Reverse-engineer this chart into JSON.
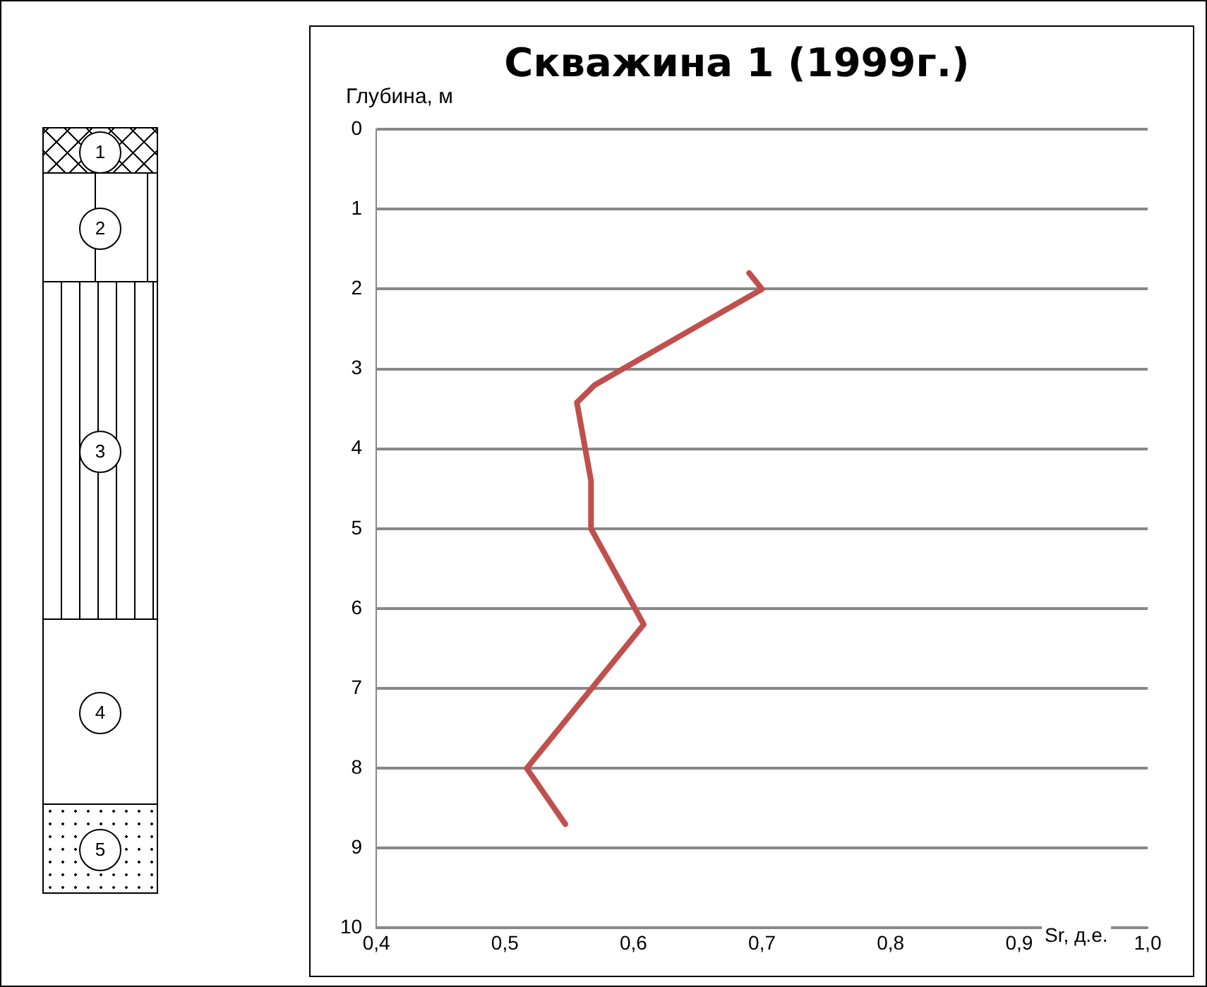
{
  "chart_data": {
    "type": "line",
    "title": "Скважина 1 (1999г.)",
    "xlabel": "Sr, д.е.",
    "ylabel": "Глубина, м",
    "annotations": [
      "1",
      "2",
      "3",
      "4",
      "5"
    ],
    "series": [
      {
        "color": "#c0504d",
        "x": [
          0.69,
          0.7,
          0.57,
          0.556,
          0.567,
          0.567,
          0.608,
          0.517,
          0.547
        ],
        "values": [
          1.8,
          2.0,
          3.2,
          3.42,
          4.4,
          5.0,
          6.2,
          8.0,
          8.7
        ]
      }
    ],
    "xlim": [
      0.4,
      1.0
    ],
    "xticks": [
      {
        "value": 0.4,
        "label": "0,4"
      },
      {
        "value": 0.5,
        "label": "0,5"
      },
      {
        "value": 0.6,
        "label": "0,6"
      },
      {
        "value": 0.7,
        "label": "0,7"
      },
      {
        "value": 0.8,
        "label": "0,8"
      },
      {
        "value": 0.9,
        "label": "0,9"
      },
      {
        "value": 1.0,
        "label": "1,0"
      }
    ],
    "ylim": [
      10,
      0
    ],
    "yticks": [
      0,
      1,
      2,
      3,
      4,
      5,
      6,
      7,
      8,
      9,
      10
    ],
    "grid": "y",
    "legend": false,
    "marker": "none",
    "line_style": "solid"
  }
}
